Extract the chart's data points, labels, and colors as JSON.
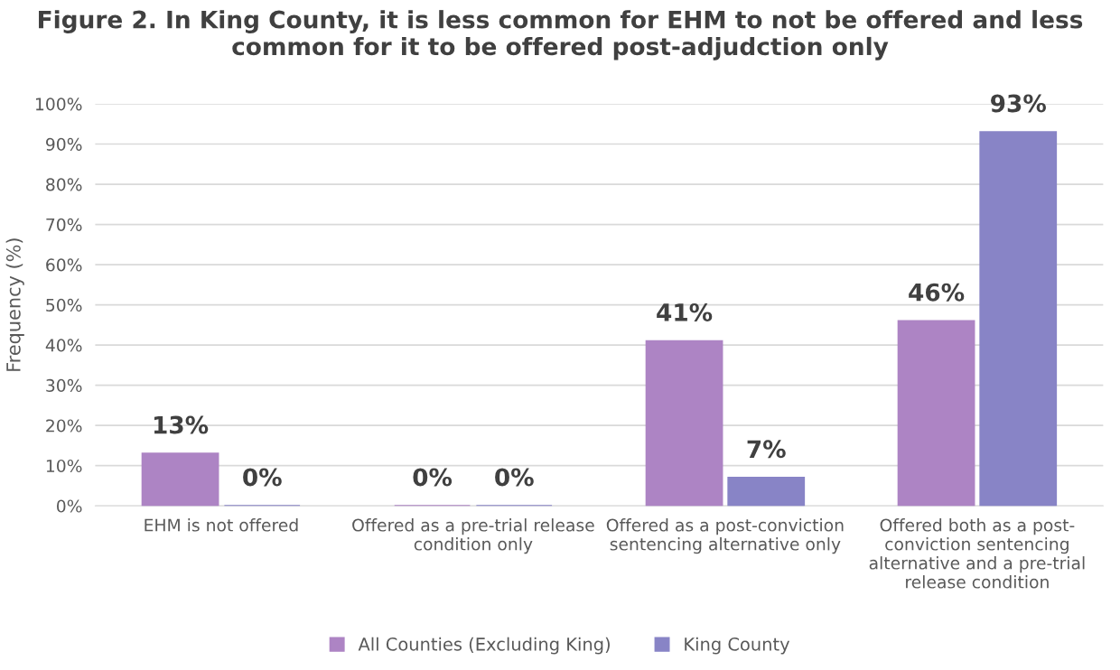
{
  "chart_data": {
    "type": "bar",
    "title": "Figure 2. In King County, it is less common for EHM to not be offered and less common for it to be offered post-adjudction only",
    "ylabel": "Frequency (%)",
    "categories": [
      "EHM is not offered",
      "Offered as a pre-trial release condition only",
      "Offered as a post-conviction sentencing alternative only",
      "Offered both as a post-conviction sentencing alternative and a pre-trial release condition"
    ],
    "series": [
      {
        "name": "All Counties (Excluding King)",
        "color": "#ad84c4",
        "values": [
          13,
          0,
          41,
          46
        ],
        "value_labels": [
          "13%",
          "0%",
          "41%",
          "46%"
        ]
      },
      {
        "name": "King County",
        "color": "#8884c6",
        "values": [
          0,
          0,
          7,
          93
        ],
        "value_labels": [
          "0%",
          "0%",
          "7%",
          "93%"
        ]
      }
    ],
    "ylim": [
      0,
      100
    ],
    "yticks": [
      {
        "value": 0,
        "label": "0%"
      },
      {
        "value": 10,
        "label": "10%"
      },
      {
        "value": 20,
        "label": "20%"
      },
      {
        "value": 30,
        "label": "30%"
      },
      {
        "value": 40,
        "label": "40%"
      },
      {
        "value": 50,
        "label": "50%"
      },
      {
        "value": 60,
        "label": "60%"
      },
      {
        "value": 70,
        "label": "70%"
      },
      {
        "value": 80,
        "label": "80%"
      },
      {
        "value": 90,
        "label": "90%"
      },
      {
        "value": 100,
        "label": "100%"
      }
    ],
    "grid": "y",
    "legend": "bottom"
  }
}
